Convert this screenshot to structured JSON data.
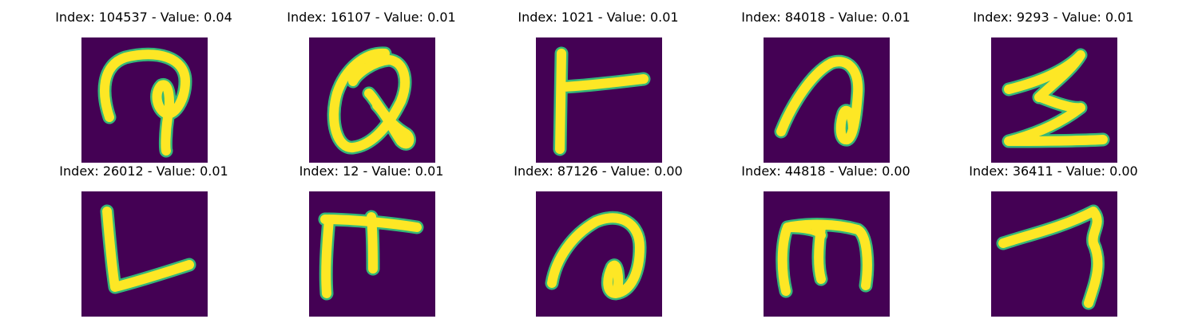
{
  "figure": {
    "colors": {
      "background": "#440154",
      "stroke": "#fde725",
      "edge": "#35b779"
    },
    "panels": [
      {
        "title": "Index: 104537 - Value: 0.04",
        "index": 104537,
        "value": 0.04,
        "glyph": "glyph-a"
      },
      {
        "title": "Index: 16107 - Value: 0.01",
        "index": 16107,
        "value": 0.01,
        "glyph": "glyph-b"
      },
      {
        "title": "Index: 1021 - Value: 0.01",
        "index": 1021,
        "value": 0.01,
        "glyph": "glyph-c"
      },
      {
        "title": "Index: 84018 - Value: 0.01",
        "index": 84018,
        "value": 0.01,
        "glyph": "glyph-d"
      },
      {
        "title": "Index: 9293 - Value: 0.01",
        "index": 9293,
        "value": 0.01,
        "glyph": "glyph-e"
      },
      {
        "title": "Index: 26012 - Value: 0.01",
        "index": 26012,
        "value": 0.01,
        "glyph": "glyph-f"
      },
      {
        "title": "Index: 12 - Value: 0.01",
        "index": 12,
        "value": 0.01,
        "glyph": "glyph-g"
      },
      {
        "title": "Index: 87126 - Value: 0.00",
        "index": 87126,
        "value": 0.0,
        "glyph": "glyph-h"
      },
      {
        "title": "Index: 44818 - Value: 0.00",
        "index": 44818,
        "value": 0.0,
        "glyph": "glyph-i"
      },
      {
        "title": "Index: 36411 - Value: 0.00",
        "index": 36411,
        "value": 0.0,
        "glyph": "glyph-j"
      }
    ]
  }
}
